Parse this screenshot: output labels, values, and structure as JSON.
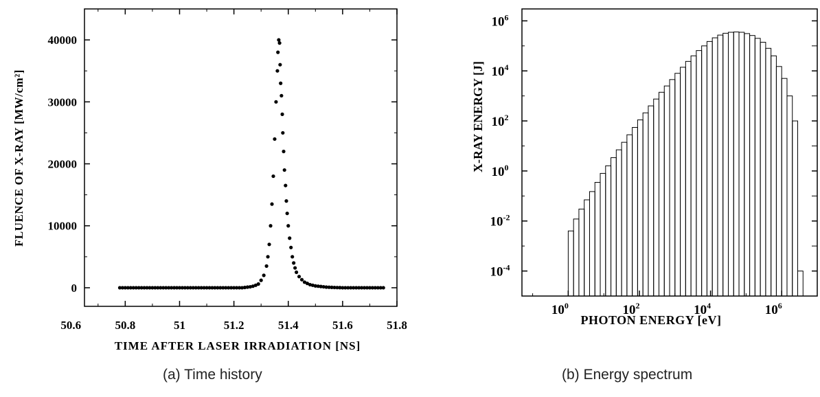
{
  "captions": {
    "a": "(a) Time history",
    "b": "(b) Energy spectrum"
  },
  "colors": {
    "ink": "#000000",
    "background": "#ffffff"
  },
  "chart_data": [
    {
      "type": "scatter",
      "xlabel": "TIME AFTER LASER IRRADIATION [NS]",
      "ylabel": "FLUENCE OF X-RAY [MW/cm²]",
      "xlim": [
        50.65,
        51.8
      ],
      "ylim": [
        -3000,
        45000
      ],
      "xticks": [
        50.6,
        50.8,
        51,
        51.2,
        51.4,
        51.6,
        51.8
      ],
      "xtick_labels": [
        "50.6",
        "50.8",
        "51",
        "51.2",
        "51.4",
        "51.6",
        "51.8"
      ],
      "yticks": [
        0,
        10000,
        20000,
        30000,
        40000
      ],
      "ytick_labels": [
        "0",
        "10000",
        "20000",
        "30000",
        "40000"
      ],
      "grid": false,
      "x": [
        50.78,
        50.79,
        50.8,
        50.81,
        50.82,
        50.83,
        50.84,
        50.85,
        50.86,
        50.87,
        50.88,
        50.89,
        50.9,
        50.91,
        50.92,
        50.93,
        50.94,
        50.95,
        50.96,
        50.97,
        50.98,
        50.99,
        51.0,
        51.01,
        51.02,
        51.03,
        51.04,
        51.05,
        51.06,
        51.07,
        51.08,
        51.09,
        51.1,
        51.11,
        51.12,
        51.13,
        51.14,
        51.15,
        51.16,
        51.17,
        51.18,
        51.19,
        51.2,
        51.21,
        51.22,
        51.23,
        51.24,
        51.25,
        51.26,
        51.27,
        51.28,
        51.29,
        51.3,
        51.31,
        51.32,
        51.325,
        51.33,
        51.335,
        51.34,
        51.345,
        51.35,
        51.355,
        51.36,
        51.362,
        51.365,
        51.368,
        51.37,
        51.372,
        51.375,
        51.378,
        51.38,
        51.383,
        51.386,
        51.39,
        51.393,
        51.396,
        51.4,
        51.405,
        51.41,
        51.415,
        51.42,
        51.425,
        51.43,
        51.44,
        51.45,
        51.46,
        51.47,
        51.48,
        51.49,
        51.5,
        51.51,
        51.52,
        51.53,
        51.54,
        51.55,
        51.56,
        51.57,
        51.58,
        51.59,
        51.6,
        51.61,
        51.62,
        51.63,
        51.64,
        51.65,
        51.66,
        51.67,
        51.68,
        51.69,
        51.7,
        51.71,
        51.72,
        51.73,
        51.74,
        51.75
      ],
      "y": [
        0,
        0,
        0,
        0,
        0,
        0,
        0,
        0,
        0,
        0,
        0,
        0,
        0,
        0,
        0,
        0,
        0,
        0,
        0,
        0,
        0,
        0,
        0,
        0,
        0,
        0,
        0,
        0,
        0,
        0,
        0,
        0,
        0,
        0,
        0,
        0,
        0,
        0,
        0,
        0,
        0,
        0,
        0,
        0,
        0,
        0,
        50,
        100,
        150,
        250,
        400,
        600,
        1200,
        2000,
        3500,
        5000,
        7000,
        10000,
        13500,
        18000,
        24000,
        30000,
        35000,
        38000,
        40000,
        39500,
        36000,
        33000,
        31000,
        28000,
        25000,
        22000,
        19000,
        16500,
        14000,
        12000,
        10000,
        8000,
        6500,
        5000,
        4000,
        3200,
        2500,
        1800,
        1300,
        900,
        700,
        500,
        400,
        300,
        250,
        200,
        150,
        100,
        80,
        60,
        40,
        30,
        20,
        0,
        0,
        0,
        0,
        0,
        0,
        0,
        0,
        0,
        0,
        0,
        0,
        0,
        0,
        0,
        0
      ]
    },
    {
      "type": "bar",
      "xlabel": "PHOTON ENERGY [eV]",
      "ylabel": "X-RAY ENERGY [J]",
      "x_scale": "log",
      "y_scale": "log",
      "xlim": [
        0.05,
        10000000
      ],
      "ylim": [
        1e-05,
        3000000
      ],
      "xticks": [
        1,
        100,
        10000,
        1000000
      ],
      "xtick_labels": [
        {
          "base": "10",
          "exp": "0"
        },
        {
          "base": "10",
          "exp": "2"
        },
        {
          "base": "10",
          "exp": "4"
        },
        {
          "base": "10",
          "exp": "6"
        }
      ],
      "yticks": [
        0.0001,
        0.01,
        1,
        100,
        10000,
        1000000
      ],
      "ytick_labels": [
        {
          "base": "10",
          "exp": "-4"
        },
        {
          "base": "10",
          "exp": "-2"
        },
        {
          "base": "10",
          "exp": "0"
        },
        {
          "base": "10",
          "exp": "2"
        },
        {
          "base": "10",
          "exp": "4"
        },
        {
          "base": "10",
          "exp": "6"
        }
      ],
      "grid": false,
      "bin_exp_start": 0,
      "bin_exp_width": 0.15,
      "values": [
        0.004,
        0.012,
        0.03,
        0.07,
        0.15,
        0.35,
        0.8,
        1.6,
        3.4,
        7,
        14,
        28,
        55,
        110,
        210,
        400,
        750,
        1400,
        2500,
        4500,
        8000,
        14000,
        24000,
        40000,
        65000,
        100000,
        150000,
        210000,
        270000,
        320000,
        350000,
        360000,
        350000,
        310000,
        260000,
        200000,
        140000,
        80000,
        40000,
        15000,
        5000,
        1000,
        100,
        0.0001
      ]
    }
  ]
}
